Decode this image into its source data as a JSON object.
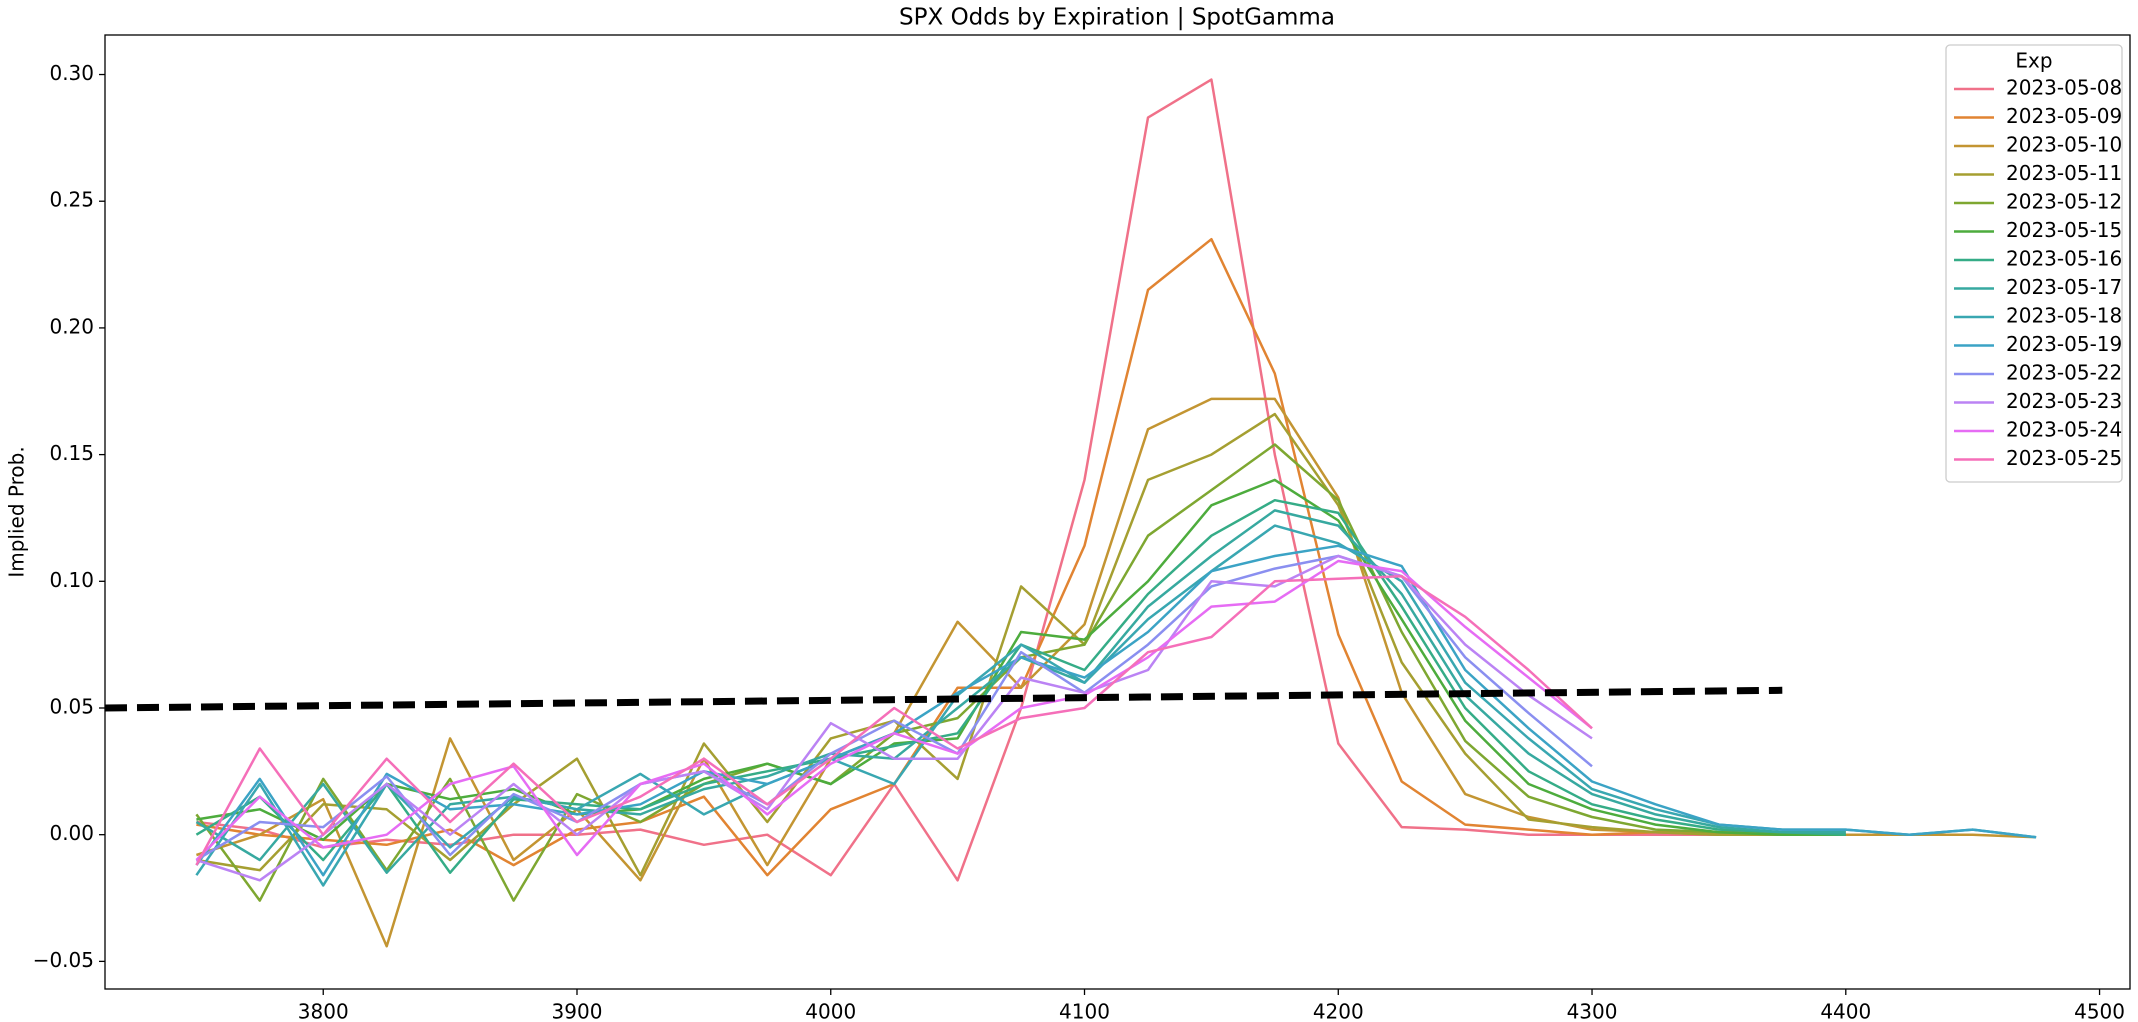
{
  "chart_data": {
    "type": "line",
    "title": "SPX Odds by Expiration | SpotGamma",
    "ylabel": "Implied Prob.",
    "legend_title": "Exp",
    "legend": "upper right",
    "x": [
      3750,
      3775,
      3800,
      3825,
      3850,
      3875,
      3900,
      3925,
      3950,
      3975,
      4000,
      4025,
      4050,
      4075,
      4100,
      4125,
      4150,
      4175,
      4200,
      4225,
      4250,
      4275,
      4300,
      4325,
      4350,
      4375,
      4400,
      4425,
      4450,
      4475
    ],
    "xlim": [
      3714,
      4512
    ],
    "xticks": [
      3800,
      3900,
      4000,
      4100,
      4200,
      4300,
      4400,
      4500
    ],
    "ylim": [
      -0.0609,
      0.3156
    ],
    "yticks": [
      {
        "value": -0.05,
        "label": "−0.05"
      },
      {
        "value": 0,
        "label": "0.00"
      },
      0.05,
      {
        "value": 0.1,
        "label": "0.10"
      },
      0.15,
      {
        "value": 0.2,
        "label": "0.20"
      },
      0.25,
      {
        "value": 0.3,
        "label": "0.30"
      }
    ],
    "series": [
      {
        "name": "2023-05-08",
        "color": "#f07189",
        "values": [
          0.005,
          0.002,
          -0.005,
          -0.002,
          -0.004,
          0.0,
          0.0,
          0.002,
          -0.004,
          0.0,
          -0.016,
          0.02,
          -0.018,
          0.05,
          0.14,
          0.283,
          0.298,
          0.15,
          0.036,
          0.003,
          0.002,
          0.0,
          0.0,
          0.0,
          0.0,
          0.0,
          0.0,
          null,
          null,
          null
        ]
      },
      {
        "name": "2023-05-09",
        "color": "#e18432",
        "values": [
          0.004,
          0.0,
          -0.002,
          -0.004,
          0.002,
          -0.012,
          0.002,
          0.005,
          0.015,
          -0.016,
          0.01,
          0.02,
          0.058,
          0.058,
          0.114,
          0.215,
          0.235,
          0.182,
          0.079,
          0.021,
          0.004,
          0.002,
          0.0,
          0.001,
          0.001,
          0.001,
          0.001,
          null,
          null,
          null
        ]
      },
      {
        "name": "2023-05-10",
        "color": "#c39532",
        "values": [
          -0.008,
          0.0,
          0.014,
          -0.044,
          0.038,
          -0.01,
          0.01,
          -0.018,
          0.03,
          -0.012,
          0.03,
          0.04,
          0.084,
          0.058,
          0.083,
          0.16,
          0.172,
          0.172,
          0.133,
          0.056,
          0.016,
          0.007,
          0.002,
          0.001,
          0.0,
          0.0,
          0.0,
          0.0,
          0.0,
          -0.001
        ]
      },
      {
        "name": "2023-05-11",
        "color": "#a59f31",
        "values": [
          -0.01,
          -0.014,
          0.012,
          0.01,
          -0.01,
          0.012,
          0.03,
          -0.016,
          0.036,
          0.005,
          0.038,
          0.045,
          0.022,
          0.098,
          0.075,
          0.14,
          0.15,
          0.166,
          0.13,
          0.068,
          0.032,
          0.006,
          0.003,
          0.001,
          0.0,
          0.0,
          0.0,
          null,
          null,
          null
        ]
      },
      {
        "name": "2023-05-12",
        "color": "#7ea731",
        "values": [
          0.008,
          -0.026,
          0.022,
          -0.014,
          0.022,
          -0.026,
          0.016,
          0.005,
          0.02,
          0.028,
          0.02,
          0.04,
          0.046,
          0.07,
          0.075,
          0.118,
          0.136,
          0.154,
          0.132,
          0.08,
          0.037,
          0.015,
          0.007,
          0.002,
          0.001,
          0.0,
          0.0,
          null,
          null,
          null
        ]
      },
      {
        "name": "2023-05-15",
        "color": "#4dac3d",
        "values": [
          0.006,
          0.01,
          -0.002,
          0.02,
          0.014,
          0.018,
          0.008,
          0.01,
          0.022,
          0.028,
          0.02,
          0.036,
          0.038,
          0.08,
          0.077,
          0.1,
          0.13,
          0.14,
          0.124,
          0.085,
          0.045,
          0.02,
          0.01,
          0.004,
          0.001,
          0.0,
          0.0,
          null,
          null,
          null
        ]
      },
      {
        "name": "2023-05-16",
        "color": "#35ac87",
        "values": [
          0.0,
          0.015,
          -0.01,
          0.02,
          -0.015,
          0.014,
          0.012,
          0.01,
          0.02,
          0.025,
          0.03,
          0.035,
          0.04,
          0.075,
          0.065,
          0.095,
          0.118,
          0.132,
          0.127,
          0.09,
          0.05,
          0.025,
          0.012,
          0.006,
          0.002,
          0.001,
          0.0,
          null,
          null,
          null
        ]
      },
      {
        "name": "2023-05-17",
        "color": "#37a9a0",
        "values": [
          0.005,
          -0.01,
          0.02,
          -0.015,
          0.012,
          0.015,
          0.01,
          0.008,
          0.018,
          0.023,
          0.032,
          0.03,
          0.05,
          0.07,
          0.06,
          0.09,
          0.11,
          0.128,
          0.122,
          0.095,
          0.055,
          0.032,
          0.016,
          0.008,
          0.003,
          0.001,
          0.001,
          null,
          null,
          null
        ]
      },
      {
        "name": "2023-05-18",
        "color": "#39a7b1",
        "values": [
          -0.016,
          0.02,
          -0.02,
          0.02,
          -0.005,
          0.015,
          0.01,
          0.024,
          0.008,
          0.02,
          0.03,
          0.02,
          0.055,
          0.075,
          0.06,
          0.085,
          0.104,
          0.122,
          0.115,
          0.1,
          0.06,
          0.038,
          0.018,
          0.01,
          0.004,
          0.002,
          0.002,
          0.0,
          0.002,
          -0.001
        ]
      },
      {
        "name": "2023-05-19",
        "color": "#3ba3c5",
        "values": [
          -0.012,
          0.022,
          -0.016,
          0.024,
          0.01,
          0.012,
          0.008,
          0.012,
          0.025,
          0.02,
          0.03,
          0.04,
          0.056,
          0.07,
          0.062,
          0.08,
          0.104,
          0.11,
          0.114,
          0.106,
          0.065,
          0.042,
          0.021,
          0.012,
          0.004,
          0.002,
          0.002,
          0.0,
          0.002,
          -0.001
        ]
      },
      {
        "name": "2023-05-22",
        "color": "#8a8ff0",
        "values": [
          -0.01,
          0.005,
          0.003,
          0.023,
          -0.008,
          0.016,
          0.005,
          0.02,
          0.025,
          0.012,
          0.032,
          0.045,
          0.032,
          0.072,
          0.056,
          0.075,
          0.098,
          0.105,
          0.11,
          0.102,
          0.07,
          0.048,
          0.027,
          null,
          null,
          null,
          null,
          null,
          null,
          null
        ]
      },
      {
        "name": "2023-05-23",
        "color": "#bb83f4",
        "values": [
          -0.01,
          -0.018,
          0.0,
          0.02,
          0.0,
          0.02,
          0.0,
          0.02,
          0.025,
          0.01,
          0.044,
          0.03,
          0.03,
          0.062,
          0.056,
          0.065,
          0.1,
          0.098,
          0.11,
          0.102,
          0.075,
          0.055,
          0.038,
          null,
          null,
          null,
          null,
          null,
          null,
          null
        ]
      },
      {
        "name": "2023-05-24",
        "color": "#e66cf4",
        "values": [
          -0.01,
          0.015,
          -0.005,
          0.0,
          0.02,
          0.027,
          -0.008,
          0.02,
          0.028,
          0.008,
          0.028,
          0.04,
          0.032,
          0.05,
          0.055,
          0.07,
          0.09,
          0.092,
          0.108,
          0.104,
          0.082,
          0.062,
          0.042,
          null,
          null,
          null,
          null,
          null,
          null,
          null
        ]
      },
      {
        "name": "2023-05-25",
        "color": "#f56fb9",
        "values": [
          -0.012,
          0.034,
          0.0,
          0.03,
          0.005,
          0.028,
          0.005,
          0.015,
          0.03,
          0.012,
          0.03,
          0.05,
          0.034,
          0.046,
          0.05,
          0.072,
          0.078,
          0.1,
          0.101,
          0.102,
          0.086,
          0.065,
          0.042,
          null,
          null,
          null,
          null,
          null,
          null,
          null
        ]
      }
    ],
    "reference_line": {
      "x": [
        3714,
        4375
      ],
      "values": [
        0.05,
        0.057
      ],
      "color": "#000000"
    }
  }
}
